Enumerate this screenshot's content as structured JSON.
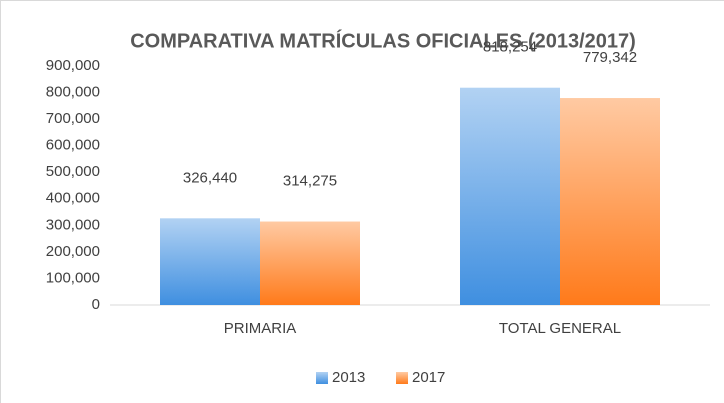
{
  "chart_data": {
    "type": "bar",
    "title": "COMPARATIVA MATRÍCULAS OFICIALES (2013/2017)",
    "categories": [
      "PRIMARIA",
      "TOTAL GENERAL"
    ],
    "series": [
      {
        "name": "2013",
        "color": "#3f8fe0",
        "values": [
          326440,
          818254
        ],
        "value_labels": [
          "326,440",
          "818,254"
        ]
      },
      {
        "name": "2017",
        "color": "#ff7a1a",
        "values": [
          314275,
          779342
        ],
        "value_labels": [
          "314,275",
          "779,342"
        ]
      }
    ],
    "ylim": [
      0,
      900000
    ],
    "yticks": [
      0,
      {
        "value": 100000,
        "label": "100,000"
      },
      {
        "value": 200000,
        "label": "200,000"
      },
      {
        "value": 300000,
        "label": "300,000"
      },
      {
        "value": 400000,
        "label": "400,000"
      },
      {
        "value": 500000,
        "label": "500,000"
      },
      {
        "value": 600000,
        "label": "600,000"
      },
      {
        "value": 700000,
        "label": "700,000"
      },
      {
        "value": 800000,
        "label": "800,000"
      },
      {
        "value": 900000,
        "label": "900,000"
      }
    ],
    "grid": false,
    "legend": "bottom"
  }
}
